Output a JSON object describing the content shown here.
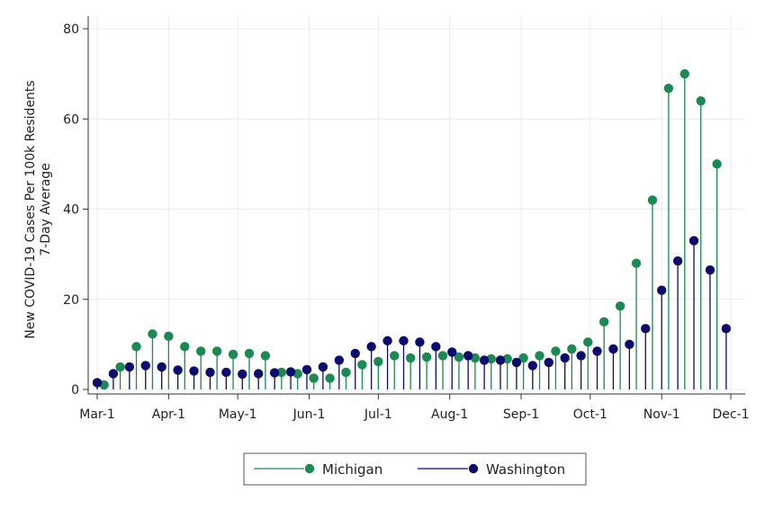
{
  "chart_data": {
    "type": "scatter",
    "style": "dropline",
    "title": "",
    "xlabel": "",
    "ylabel_lines": [
      "New COVID-19 Cases Per 100k Residents",
      "7-Day Average"
    ],
    "ylim": [
      0,
      80
    ],
    "yticks": [
      0,
      20,
      40,
      60,
      80
    ],
    "xlim": [
      "2020-03-01",
      "2020-12-01"
    ],
    "xticks": [
      {
        "date": "2020-03-01",
        "label": "Mar-1"
      },
      {
        "date": "2020-04-01",
        "label": "Apr-1"
      },
      {
        "date": "2020-05-01",
        "label": "May-1"
      },
      {
        "date": "2020-06-01",
        "label": "Jun-1"
      },
      {
        "date": "2020-07-01",
        "label": "Jul-1"
      },
      {
        "date": "2020-08-01",
        "label": "Aug-1"
      },
      {
        "date": "2020-09-01",
        "label": "Sep-1"
      },
      {
        "date": "2020-10-01",
        "label": "Oct-1"
      },
      {
        "date": "2020-11-01",
        "label": "Nov-1"
      },
      {
        "date": "2020-12-01",
        "label": "Dec-1"
      }
    ],
    "grid": true,
    "legend_position": "bottom",
    "series": [
      {
        "name": "Michigan",
        "color": "#1a8a52",
        "points": [
          [
            "2020-03-04",
            1
          ],
          [
            "2020-03-11",
            5
          ],
          [
            "2020-03-18",
            9.5
          ],
          [
            "2020-03-25",
            12.3
          ],
          [
            "2020-04-01",
            11.8
          ],
          [
            "2020-04-08",
            9.5
          ],
          [
            "2020-04-15",
            8.5
          ],
          [
            "2020-04-22",
            8.5
          ],
          [
            "2020-04-29",
            7.8
          ],
          [
            "2020-05-06",
            8
          ],
          [
            "2020-05-13",
            7.5
          ],
          [
            "2020-05-20",
            3.8
          ],
          [
            "2020-05-27",
            3.5
          ],
          [
            "2020-06-03",
            2.5
          ],
          [
            "2020-06-10",
            2.5
          ],
          [
            "2020-06-17",
            3.8
          ],
          [
            "2020-06-24",
            5.5
          ],
          [
            "2020-07-01",
            6.2
          ],
          [
            "2020-07-08",
            7.5
          ],
          [
            "2020-07-15",
            7
          ],
          [
            "2020-07-22",
            7.2
          ],
          [
            "2020-07-29",
            7.5
          ],
          [
            "2020-08-05",
            7.2
          ],
          [
            "2020-08-12",
            7
          ],
          [
            "2020-08-19",
            6.8
          ],
          [
            "2020-08-26",
            6.8
          ],
          [
            "2020-09-02",
            7
          ],
          [
            "2020-09-09",
            7.5
          ],
          [
            "2020-09-16",
            8.5
          ],
          [
            "2020-09-23",
            9
          ],
          [
            "2020-09-30",
            10.5
          ],
          [
            "2020-10-07",
            15
          ],
          [
            "2020-10-14",
            18.5
          ],
          [
            "2020-10-21",
            28
          ],
          [
            "2020-10-28",
            42
          ],
          [
            "2020-11-04",
            66.8
          ],
          [
            "2020-11-11",
            70
          ],
          [
            "2020-11-18",
            64
          ],
          [
            "2020-11-25",
            50
          ]
        ]
      },
      {
        "name": "Washington",
        "color": "#0b0b70",
        "points": [
          [
            "2020-03-01",
            1.5
          ],
          [
            "2020-03-08",
            3.5
          ],
          [
            "2020-03-15",
            5
          ],
          [
            "2020-03-22",
            5.3
          ],
          [
            "2020-03-29",
            5
          ],
          [
            "2020-04-05",
            4.3
          ],
          [
            "2020-04-12",
            4.1
          ],
          [
            "2020-04-19",
            3.8
          ],
          [
            "2020-04-26",
            3.8
          ],
          [
            "2020-05-03",
            3.4
          ],
          [
            "2020-05-10",
            3.5
          ],
          [
            "2020-05-17",
            3.7
          ],
          [
            "2020-05-24",
            3.9
          ],
          [
            "2020-05-31",
            4.4
          ],
          [
            "2020-06-07",
            5
          ],
          [
            "2020-06-14",
            6.5
          ],
          [
            "2020-06-21",
            8
          ],
          [
            "2020-06-28",
            9.5
          ],
          [
            "2020-07-05",
            10.8
          ],
          [
            "2020-07-12",
            10.8
          ],
          [
            "2020-07-19",
            10.5
          ],
          [
            "2020-07-26",
            9.5
          ],
          [
            "2020-08-02",
            8.3
          ],
          [
            "2020-08-09",
            7.5
          ],
          [
            "2020-08-16",
            6.5
          ],
          [
            "2020-08-23",
            6.5
          ],
          [
            "2020-08-30",
            6
          ],
          [
            "2020-09-06",
            5.3
          ],
          [
            "2020-09-13",
            6
          ],
          [
            "2020-09-20",
            7
          ],
          [
            "2020-09-27",
            7.5
          ],
          [
            "2020-10-04",
            8.5
          ],
          [
            "2020-10-11",
            9
          ],
          [
            "2020-10-18",
            10
          ],
          [
            "2020-10-25",
            13.5
          ],
          [
            "2020-11-01",
            22
          ],
          [
            "2020-11-08",
            28.5
          ],
          [
            "2020-11-15",
            33
          ],
          [
            "2020-11-22",
            26.5
          ],
          [
            "2020-11-29",
            13.5
          ]
        ]
      }
    ]
  }
}
